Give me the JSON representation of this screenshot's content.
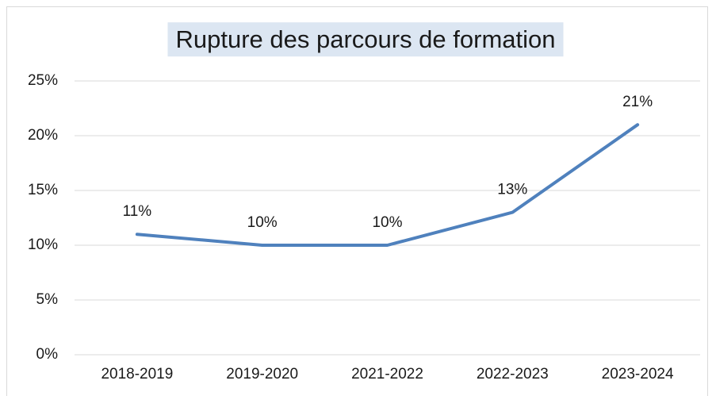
{
  "chart_data": {
    "type": "line",
    "title": "Rupture des parcours de formation",
    "categories": [
      "2018-2019",
      "2019-2020",
      "2021-2022",
      "2022-2023",
      "2023-2024"
    ],
    "values": [
      11,
      10,
      10,
      13,
      21
    ],
    "value_labels": [
      "11%",
      "10%",
      "10%",
      "13%",
      "21%"
    ],
    "color": "#4f81bd",
    "ylim": [
      0,
      25
    ],
    "yticks": [
      {
        "value": 0,
        "label": "0%"
      },
      {
        "value": 5,
        "label": "5%"
      },
      {
        "value": 10,
        "label": "10%"
      },
      {
        "value": 15,
        "label": "15%"
      },
      {
        "value": 20,
        "label": "20%"
      },
      {
        "value": 25,
        "label": "25%"
      }
    ],
    "grid": true
  }
}
